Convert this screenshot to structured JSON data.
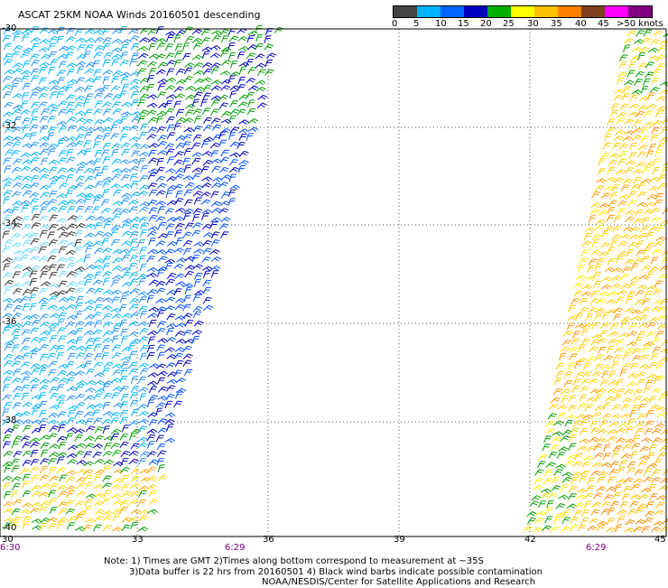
{
  "title": "ASCAT 25KM NOAA Winds 20160501 descending",
  "legend": {
    "ticks": [
      "0",
      "5",
      "10",
      "15",
      "20",
      "25",
      "30",
      "35",
      "40",
      "45",
      ">50 knots"
    ],
    "colors": [
      "#444444",
      "#00b4ff",
      "#0066ff",
      "#0000c0",
      "#00b000",
      "#ffff00",
      "#ffc000",
      "#ff8000",
      "#804020",
      "#ff00ff",
      "#800080"
    ]
  },
  "axes": {
    "lat_labels": [
      "-30",
      "-32",
      "-34",
      "-36",
      "-38",
      "-40"
    ],
    "lon_labels": [
      "30",
      "33",
      "36",
      "39",
      "42",
      "45"
    ]
  },
  "times": [
    "6:30",
    "6:29",
    "6:29"
  ],
  "notes": [
    "Note: 1) Times are GMT 2)Times along bottom correspond to measurement at ~35S",
    "3)Data buffer is 22 hrs from 20160501 4) Black wind barbs indicate possible contamination",
    "NOAA/NESDIS/Center for Satellite Applications and Research"
  ]
}
